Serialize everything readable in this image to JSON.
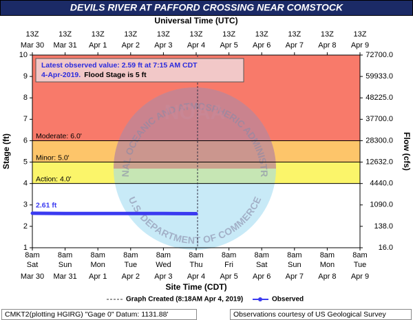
{
  "chart_data": {
    "type": "line",
    "title": "DEVILS RIVER AT PAFFORD CROSSING NEAR COMSTOCK",
    "top_axis_label": "Universal Time (UTC)",
    "x_label": "Site Time (CDT)",
    "y_label": "Stage (ft)",
    "y2_label": "Flow (cfs)",
    "top_ticks": [
      {
        "hour": "13Z",
        "date": "Mar 30"
      },
      {
        "hour": "13Z",
        "date": "Mar 31"
      },
      {
        "hour": "13Z",
        "date": "Apr 1"
      },
      {
        "hour": "13Z",
        "date": "Apr 2"
      },
      {
        "hour": "13Z",
        "date": "Apr 3"
      },
      {
        "hour": "13Z",
        "date": "Apr 4"
      },
      {
        "hour": "13Z",
        "date": "Apr 5"
      },
      {
        "hour": "13Z",
        "date": "Apr 6"
      },
      {
        "hour": "13Z",
        "date": "Apr 7"
      },
      {
        "hour": "13Z",
        "date": "Apr 8"
      },
      {
        "hour": "13Z",
        "date": "Apr 9"
      }
    ],
    "categories": [
      {
        "time": "8am",
        "day": "Sat",
        "date": "Mar 30"
      },
      {
        "time": "8am",
        "day": "Sun",
        "date": "Mar 31"
      },
      {
        "time": "8am",
        "day": "Mon",
        "date": "Apr 1"
      },
      {
        "time": "8am",
        "day": "Tue",
        "date": "Apr 2"
      },
      {
        "time": "8am",
        "day": "Wed",
        "date": "Apr 3"
      },
      {
        "time": "8am",
        "day": "Thu",
        "date": "Apr 4"
      },
      {
        "time": "8am",
        "day": "Fri",
        "date": "Apr 5"
      },
      {
        "time": "8am",
        "day": "Sat",
        "date": "Apr 6"
      },
      {
        "time": "8am",
        "day": "Sun",
        "date": "Apr 7"
      },
      {
        "time": "8am",
        "day": "Mon",
        "date": "Apr 8"
      },
      {
        "time": "8am",
        "day": "Tue",
        "date": "Apr 9"
      }
    ],
    "series": [
      {
        "name": "Observed",
        "color": "#3a3af0",
        "values": [
          2.61,
          2.6,
          2.6,
          2.6,
          2.6,
          2.59,
          null,
          null,
          null,
          null,
          null
        ],
        "value_labels": [
          "2.61 ft",
          null,
          null,
          null,
          null,
          null,
          null,
          null,
          null,
          null,
          null
        ]
      }
    ],
    "ylim": [
      1,
      10
    ],
    "yticks": [
      1,
      2,
      3,
      4,
      5,
      6,
      7,
      8,
      9,
      10
    ],
    "y2ticks": [
      {
        "value": 16,
        "label": "16.0"
      },
      {
        "value": 138,
        "label": "138.0"
      },
      {
        "value": 1090,
        "label": "1090.0"
      },
      {
        "value": 4440,
        "label": "4440.0"
      },
      {
        "value": 12632,
        "label": "12632.0"
      },
      {
        "value": 28300,
        "label": "28300.0"
      },
      {
        "value": 37700,
        "label": "37700.0"
      },
      {
        "value": 48225,
        "label": "48225.0"
      },
      {
        "value": 59933,
        "label": "59933.0"
      },
      {
        "value": 72700,
        "label": "72700.0"
      }
    ],
    "flood_levels": [
      {
        "label": "Action: 4.0'",
        "value": 4,
        "color": "#fbf56a"
      },
      {
        "label": "Minor: 5.0'",
        "value": 5,
        "color": "#fdc56a"
      },
      {
        "label": "Moderate: 6.0'",
        "value": 6,
        "color": "#f87a6a"
      }
    ],
    "annotation": {
      "line1": "Latest observed value: 2.59 ft at 7:15 AM CDT",
      "line2a": "4-Apr-2019.",
      "line2b": "Flood Stage is 5 ft"
    },
    "graph_created": "Graph Created (8:18AM Apr 4, 2019)",
    "watermark": {
      "logo": "NOAA",
      "upper": "NATIONAL OCEANIC AND ATMOSPHERIC ADMINISTRATION",
      "lower": "U.S. DEPARTMENT OF COMMERCE"
    },
    "footer_left": "CMKT2(plotting HGIRG) \"Gage 0\" Datum: 1131.88'",
    "footer_right": "Observations courtesy of US Geological Survey"
  }
}
